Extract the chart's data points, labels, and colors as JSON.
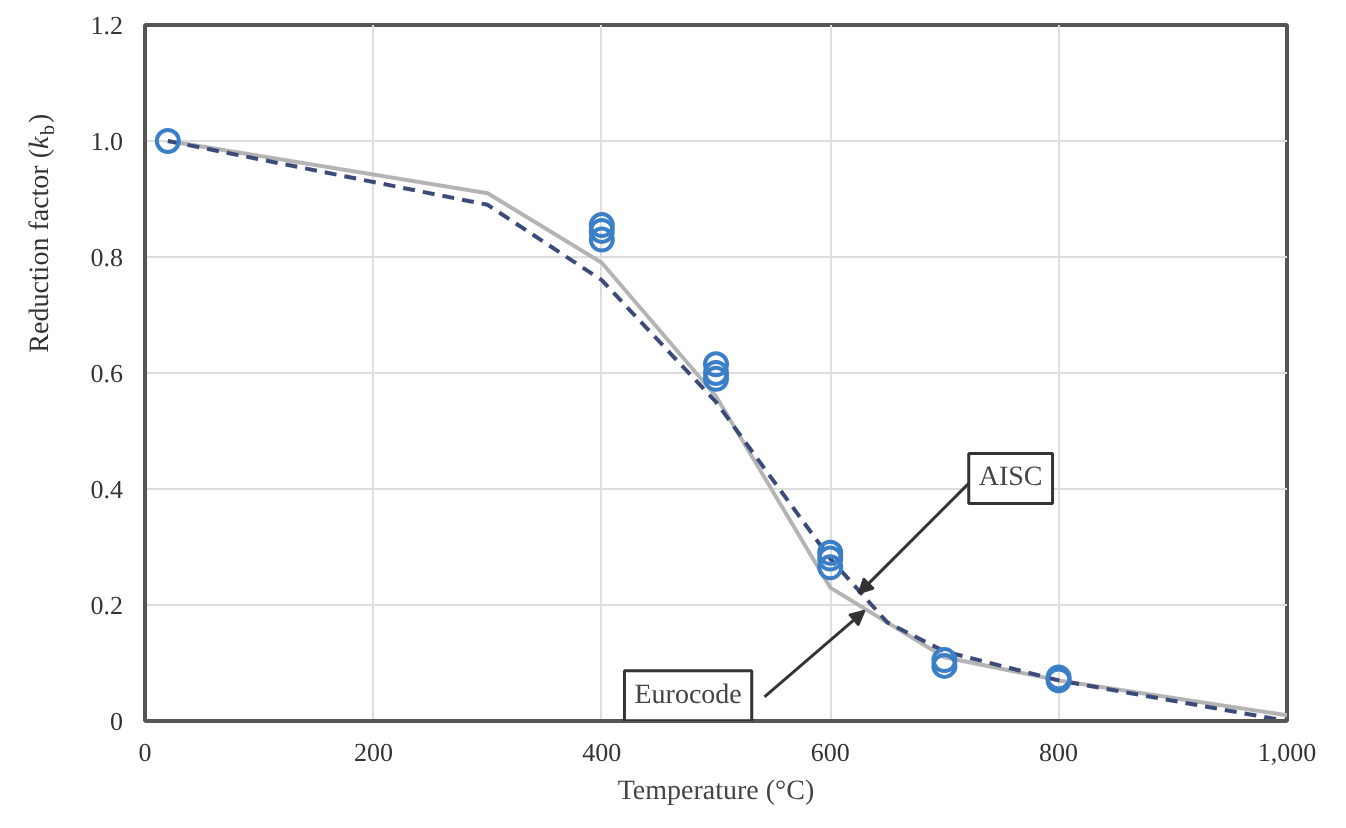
{
  "chart_data": {
    "type": "line",
    "xlabel": "Temperature (°C)",
    "ylabel": "Reduction factor (k$_{b}$)",
    "xlim": [
      0,
      1000
    ],
    "ylim": [
      0,
      1.2
    ],
    "xticks": [
      0,
      200,
      400,
      600,
      800,
      {
        "value": 1000,
        "label": "1,000"
      }
    ],
    "yticks": [
      0,
      0.2,
      0.4,
      0.6,
      0.8,
      {
        "value": 1,
        "label": "1.0"
      },
      1.2
    ],
    "grid": true,
    "series": [
      {
        "color": "#b4b4b4",
        "line_style": "solid",
        "x": [
          20,
          300,
          400,
          500,
          600,
          700,
          800,
          1000
        ],
        "values": [
          1.0,
          0.91,
          0.79,
          0.56,
          0.23,
          0.11,
          0.07,
          0.01
        ]
      },
      {
        "color": "#3c4a7a",
        "line_style": "dashed",
        "x": [
          20,
          300,
          400,
          500,
          600,
          650,
          700,
          800,
          1000
        ],
        "values": [
          1.0,
          0.89,
          0.76,
          0.55,
          0.28,
          0.17,
          0.12,
          0.07,
          0.0
        ]
      },
      {
        "type": "scatter",
        "color": "#3a7fc8",
        "marker": "circle",
        "x": [
          20,
          400,
          400,
          400,
          500,
          500,
          500,
          600,
          600,
          600,
          700,
          700,
          800,
          800
        ],
        "values": [
          1.0,
          0.83,
          0.845,
          0.855,
          0.59,
          0.6,
          0.615,
          0.265,
          0.28,
          0.29,
          0.095,
          0.105,
          0.07,
          0.075
        ]
      }
    ],
    "annotations": [
      {
        "text": "AISC",
        "x": 625,
        "y": 0.22
      },
      {
        "text": "Eurocode",
        "x": 630,
        "y": 0.19
      }
    ]
  }
}
